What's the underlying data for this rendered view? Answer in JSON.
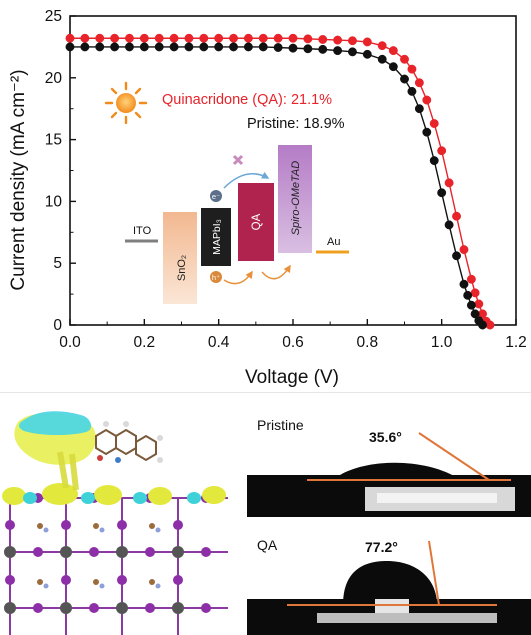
{
  "chart_data": {
    "type": "line",
    "xlabel": "Voltage (V)",
    "ylabel": "Current density (mA cm⁻²)",
    "xlim": [
      0.0,
      1.2
    ],
    "ylim": [
      0,
      25
    ],
    "xticks": [
      "0.0",
      "0.2",
      "0.4",
      "0.6",
      "0.8",
      "1.0",
      "1.2"
    ],
    "yticks": [
      "0",
      "5",
      "10",
      "15",
      "20",
      "25"
    ],
    "xtick_values": [
      0.0,
      0.2,
      0.4,
      0.6,
      0.8,
      1.0,
      1.2
    ],
    "ytick_values": [
      0,
      5,
      10,
      15,
      20,
      25
    ],
    "grid": false,
    "series": [
      {
        "name": "Quinacridone (QA): 21.1%",
        "color": "#e8232a",
        "x": [
          0.0,
          0.04,
          0.08,
          0.12,
          0.16,
          0.2,
          0.24,
          0.28,
          0.32,
          0.36,
          0.4,
          0.44,
          0.48,
          0.52,
          0.56,
          0.6,
          0.64,
          0.68,
          0.72,
          0.76,
          0.8,
          0.84,
          0.87,
          0.9,
          0.92,
          0.94,
          0.96,
          0.98,
          1.0,
          1.02,
          1.04,
          1.06,
          1.08,
          1.09,
          1.1,
          1.11,
          1.12,
          1.13
        ],
        "y": [
          23.2,
          23.2,
          23.2,
          23.2,
          23.2,
          23.2,
          23.2,
          23.2,
          23.2,
          23.2,
          23.2,
          23.2,
          23.2,
          23.2,
          23.2,
          23.2,
          23.15,
          23.1,
          23.05,
          23.0,
          22.9,
          22.6,
          22.2,
          21.5,
          20.7,
          19.6,
          18.2,
          16.3,
          14.1,
          11.5,
          8.8,
          6.1,
          3.7,
          2.6,
          1.7,
          0.9,
          0.3,
          0.0
        ]
      },
      {
        "name": "Pristine: 18.9%",
        "color": "#111111",
        "x": [
          0.0,
          0.04,
          0.08,
          0.12,
          0.16,
          0.2,
          0.24,
          0.28,
          0.32,
          0.36,
          0.4,
          0.44,
          0.48,
          0.52,
          0.56,
          0.6,
          0.64,
          0.68,
          0.72,
          0.76,
          0.8,
          0.84,
          0.87,
          0.9,
          0.92,
          0.94,
          0.96,
          0.98,
          1.0,
          1.02,
          1.04,
          1.06,
          1.07,
          1.08,
          1.09,
          1.1,
          1.11
        ],
        "y": [
          22.5,
          22.5,
          22.5,
          22.5,
          22.5,
          22.5,
          22.5,
          22.5,
          22.5,
          22.5,
          22.5,
          22.5,
          22.5,
          22.5,
          22.45,
          22.4,
          22.35,
          22.3,
          22.2,
          22.1,
          21.9,
          21.5,
          20.9,
          19.9,
          18.9,
          17.5,
          15.6,
          13.3,
          10.7,
          8.1,
          5.6,
          3.3,
          2.4,
          1.6,
          0.9,
          0.35,
          0.0
        ]
      }
    ],
    "legend_placement": "top-center",
    "inset": {
      "layers": [
        {
          "label": "ITO",
          "color": "#808080"
        },
        {
          "label": "SnO₂",
          "color": "#f4c8a8"
        },
        {
          "label": "MAPbI₃",
          "color": "#222222"
        },
        {
          "label": "QA",
          "color": "#b0234f"
        },
        {
          "label": "Spiro-OMeTAD",
          "color": "#c49cd4"
        },
        {
          "label": "Au",
          "color": "#f0a020"
        }
      ],
      "electron": "e⁻",
      "hole": "h⁺"
    }
  },
  "panels": {
    "contact_angle": [
      {
        "label": "Pristine",
        "angle": "35.6°"
      },
      {
        "label": "QA",
        "angle": "77.2°"
      }
    ]
  }
}
